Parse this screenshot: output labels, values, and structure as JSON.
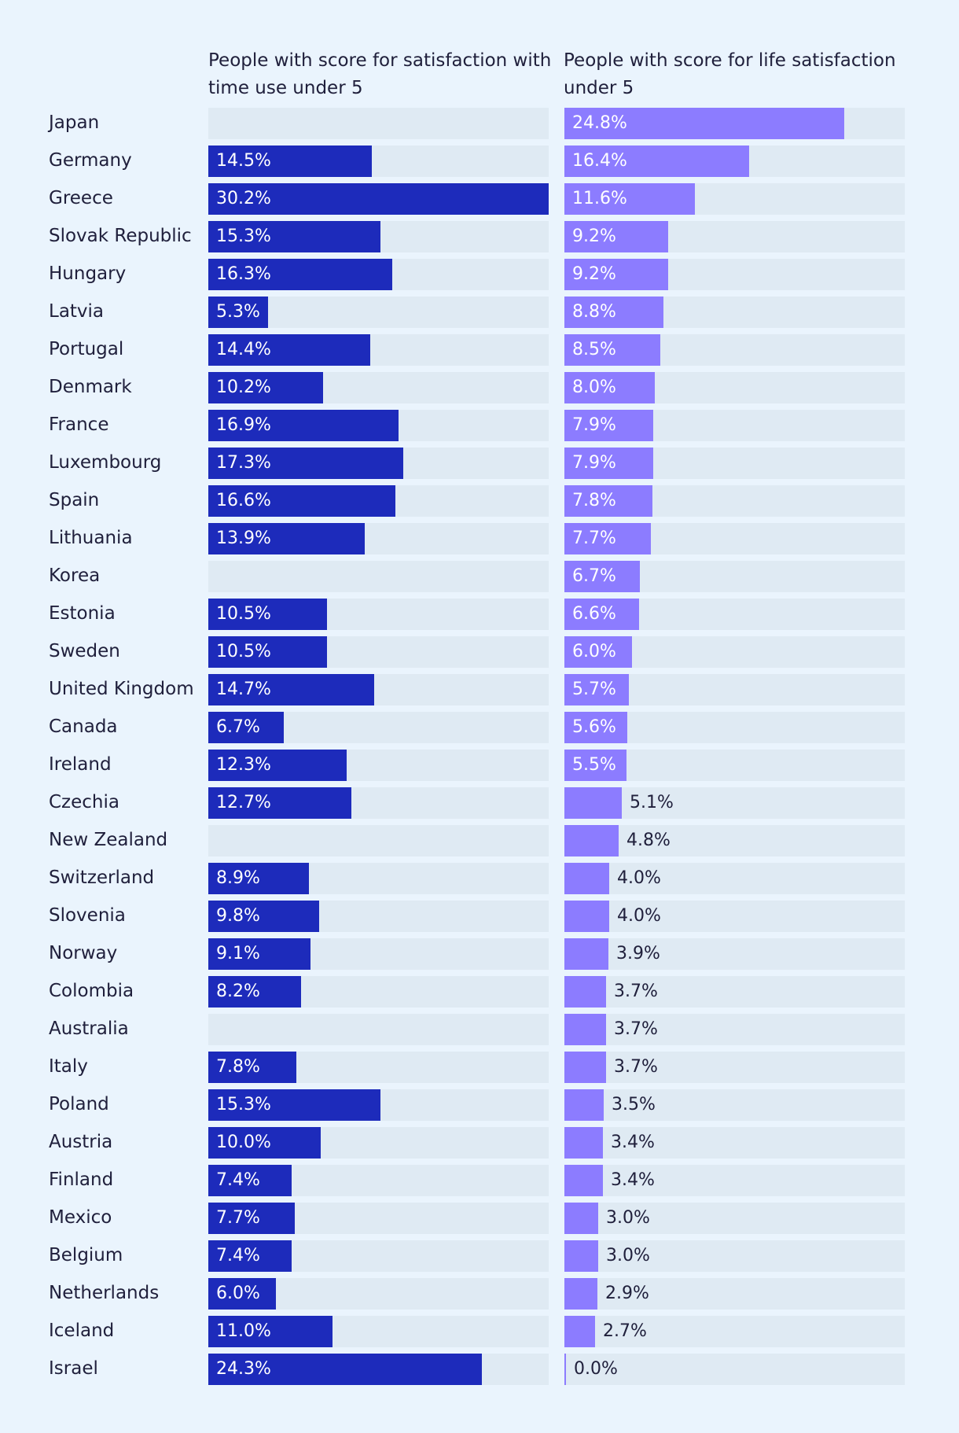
{
  "chart_data": {
    "type": "bar",
    "orientation": "horizontal",
    "colors": {
      "series1": "#1d2bbb",
      "series2": "#8c7cff",
      "track": "#dfeaf3",
      "background": "#eaf4fd"
    },
    "categories": [
      "Japan",
      "Germany",
      "Greece",
      "Slovak Republic",
      "Hungary",
      "Latvia",
      "Portugal",
      "Denmark",
      "France",
      "Luxembourg",
      "Spain",
      "Lithuania",
      "Korea",
      "Estonia",
      "Sweden",
      "United Kingdom",
      "Canada",
      "Ireland",
      "Czechia",
      "New Zealand",
      "Switzerland",
      "Slovenia",
      "Norway",
      "Colombia",
      "Australia",
      "Italy",
      "Poland",
      "Austria",
      "Finland",
      "Mexico",
      "Belgium",
      "Netherlands",
      "Iceland",
      "Israel"
    ],
    "series": [
      {
        "name": "People with score for satisfaction with time use under 5",
        "max": 30.2,
        "values": [
          null,
          14.5,
          30.2,
          15.3,
          16.3,
          5.3,
          14.4,
          10.2,
          16.9,
          17.3,
          16.6,
          13.9,
          null,
          10.5,
          10.5,
          14.7,
          6.7,
          12.3,
          12.7,
          null,
          8.9,
          9.8,
          9.1,
          8.2,
          null,
          7.8,
          15.3,
          10.0,
          7.4,
          7.7,
          7.4,
          6.0,
          11.0,
          24.3
        ],
        "labels": [
          "",
          "14.5%",
          "30.2%",
          "15.3%",
          "16.3%",
          "5.3%",
          "14.4%",
          "10.2%",
          "16.9%",
          "17.3%",
          "16.6%",
          "13.9%",
          "",
          "10.5%",
          "10.5%",
          "14.7%",
          "6.7%",
          "12.3%",
          "12.7%",
          "",
          "8.9%",
          "9.8%",
          "9.1%",
          "8.2%",
          "",
          "7.8%",
          "15.3%",
          "10.0%",
          "7.4%",
          "7.7%",
          "7.4%",
          "6.0%",
          "11.0%",
          "24.3%"
        ]
      },
      {
        "name": "People with score for life satisfaction under 5",
        "max": 30.2,
        "values": [
          24.8,
          16.4,
          11.6,
          9.2,
          9.2,
          8.8,
          8.5,
          8.0,
          7.9,
          7.9,
          7.8,
          7.7,
          6.7,
          6.6,
          6.0,
          5.7,
          5.6,
          5.5,
          5.1,
          4.8,
          4.0,
          4.0,
          3.9,
          3.7,
          3.7,
          3.7,
          3.5,
          3.4,
          3.4,
          3.0,
          3.0,
          2.9,
          2.7,
          0.0
        ],
        "labels": [
          "24.8%",
          "16.4%",
          "11.6%",
          "9.2%",
          "9.2%",
          "8.8%",
          "8.5%",
          "8.0%",
          "7.9%",
          "7.9%",
          "7.8%",
          "7.7%",
          "6.7%",
          "6.6%",
          "6.0%",
          "5.7%",
          "5.6%",
          "5.5%",
          "5.1%",
          "4.8%",
          "4.0%",
          "4.0%",
          "3.9%",
          "3.7%",
          "3.7%",
          "3.7%",
          "3.5%",
          "3.4%",
          "3.4%",
          "3.0%",
          "3.0%",
          "2.9%",
          "2.7%",
          "0.0%"
        ]
      }
    ]
  }
}
